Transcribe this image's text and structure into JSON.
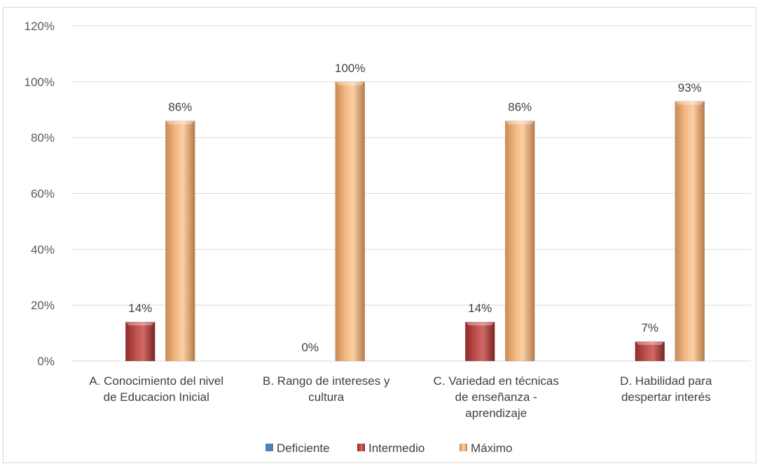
{
  "chart_data": {
    "type": "bar",
    "title": "",
    "xlabel": "",
    "ylabel": "",
    "ylim": [
      0,
      1.2
    ],
    "yticks": [
      0,
      0.2,
      0.4,
      0.6,
      0.8,
      1.0,
      1.2
    ],
    "ytick_labels": [
      "0%",
      "20%",
      "40%",
      "60%",
      "80%",
      "100%",
      "120%"
    ],
    "grid": true,
    "legend_position": "bottom",
    "categories": [
      [
        "A. Conocimiento del nivel",
        "de Educacion Inicial"
      ],
      [
        "B. Rango de intereses y",
        "cultura"
      ],
      [
        "C. Variedad en técnicas",
        "de enseñanza -",
        "aprendizaje"
      ],
      [
        "D. Habilidad para",
        "despertar interés"
      ]
    ],
    "series": [
      {
        "name": "Deficiente",
        "color": "#4f81bd",
        "values": [
          null,
          null,
          null,
          null
        ],
        "labels": [
          "",
          "",
          "",
          ""
        ]
      },
      {
        "name": "Intermedio",
        "color": "#c0504d",
        "values": [
          0.14,
          0.0,
          0.14,
          0.07
        ],
        "labels": [
          "14%",
          "0%",
          "14%",
          "7%"
        ]
      },
      {
        "name": "Máximo",
        "color": "#fac090",
        "values": [
          0.86,
          1.0,
          0.86,
          0.93
        ],
        "labels": [
          "86%",
          "100%",
          "86%",
          "93%"
        ]
      }
    ]
  }
}
